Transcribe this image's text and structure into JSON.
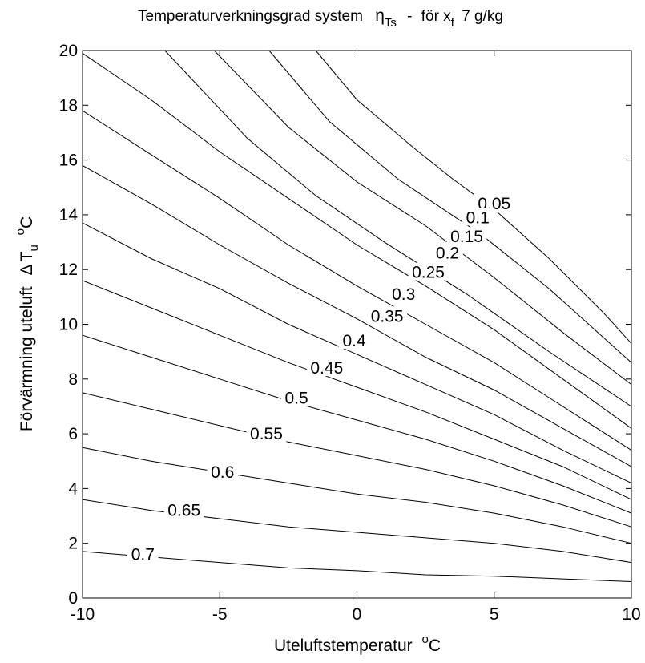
{
  "chart_data": {
    "type": "contour",
    "title": {
      "main": "Temperaturverkningsgrad system",
      "symbol": "η",
      "symbol_sub": "Ts",
      "dash": "-",
      "for_label": "för x",
      "for_sub": "f",
      "value": "7 g/kg"
    },
    "xlabel": {
      "text": "Uteluftstemperatur",
      "sup": "o",
      "unit": "C"
    },
    "ylabel": {
      "text": "Förvärmning uteluft",
      "delta": "Δ",
      "var": "T",
      "var_sub": "u",
      "sup": "o",
      "unit": "C"
    },
    "xlim": [
      -10,
      10
    ],
    "ylim": [
      0,
      20
    ],
    "xticks": [
      -10,
      -5,
      0,
      5,
      10
    ],
    "yticks": [
      0,
      2,
      4,
      6,
      8,
      10,
      12,
      14,
      16,
      18,
      20
    ],
    "grid": false,
    "levels": [
      {
        "label": "0.05",
        "pts": [
          [
            -1.5,
            20
          ],
          [
            0,
            18.2
          ],
          [
            2,
            16.5
          ],
          [
            3.5,
            15.3
          ],
          [
            5,
            14.2
          ],
          [
            7,
            12.4
          ],
          [
            9,
            10.4
          ],
          [
            10,
            9.3
          ]
        ],
        "lx": 5.0,
        "ly": 14.4
      },
      {
        "label": "0.1",
        "pts": [
          [
            -3.2,
            20
          ],
          [
            -1,
            17.4
          ],
          [
            1.5,
            15.3
          ],
          [
            4.5,
            13.3
          ],
          [
            7,
            11.3
          ],
          [
            9,
            9.5
          ],
          [
            10,
            8.6
          ]
        ],
        "lx": 4.4,
        "ly": 13.9
      },
      {
        "label": "0.15",
        "pts": [
          [
            -5.2,
            20
          ],
          [
            -2.5,
            17.2
          ],
          [
            0,
            15.2
          ],
          [
            2.5,
            13.6
          ],
          [
            5,
            11.7
          ],
          [
            7.5,
            9.7
          ],
          [
            10,
            7.8
          ]
        ],
        "lx": 4.0,
        "ly": 13.2
      },
      {
        "label": "0.2",
        "pts": [
          [
            -7,
            20
          ],
          [
            -4,
            16.8
          ],
          [
            -1.5,
            14.7
          ],
          [
            1,
            13.0
          ],
          [
            4,
            11.1
          ],
          [
            7,
            9.0
          ],
          [
            10,
            7.0
          ]
        ],
        "lx": 3.3,
        "ly": 12.6
      },
      {
        "label": "0.25",
        "pts": [
          [
            -10,
            19.9
          ],
          [
            -7.5,
            18.2
          ],
          [
            -5,
            16.3
          ],
          [
            -2.5,
            14.6
          ],
          [
            0,
            12.9
          ],
          [
            2.5,
            11.4
          ],
          [
            5,
            9.8
          ],
          [
            7.5,
            8.0
          ],
          [
            10,
            6.2
          ]
        ],
        "lx": 2.6,
        "ly": 11.9
      },
      {
        "label": "0.3",
        "pts": [
          [
            -10,
            17.8
          ],
          [
            -7.5,
            16.2
          ],
          [
            -5,
            14.6
          ],
          [
            -2.5,
            12.9
          ],
          [
            0,
            11.4
          ],
          [
            2.5,
            10.0
          ],
          [
            5,
            8.6
          ],
          [
            7.5,
            7.0
          ],
          [
            10,
            5.4
          ]
        ],
        "lx": 1.7,
        "ly": 11.1
      },
      {
        "label": "0.35",
        "pts": [
          [
            -10,
            15.8
          ],
          [
            -7.5,
            14.4
          ],
          [
            -5,
            12.9
          ],
          [
            -2.5,
            11.5
          ],
          [
            0,
            10.2
          ],
          [
            2.5,
            8.8
          ],
          [
            5,
            7.6
          ],
          [
            7.5,
            6.2
          ],
          [
            10,
            4.8
          ]
        ],
        "lx": 1.1,
        "ly": 10.3
      },
      {
        "label": "0.4",
        "pts": [
          [
            -10,
            13.7
          ],
          [
            -7.5,
            12.4
          ],
          [
            -5,
            11.3
          ],
          [
            -2.5,
            10.0
          ],
          [
            0,
            8.9
          ],
          [
            2.5,
            7.8
          ],
          [
            5,
            6.7
          ],
          [
            7.5,
            5.4
          ],
          [
            10,
            4.2
          ]
        ],
        "lx": -0.1,
        "ly": 9.4
      },
      {
        "label": "0.45",
        "pts": [
          [
            -10,
            11.6
          ],
          [
            -7.5,
            10.6
          ],
          [
            -5,
            9.6
          ],
          [
            -2.5,
            8.6
          ],
          [
            0,
            7.7
          ],
          [
            2.5,
            6.8
          ],
          [
            5,
            5.8
          ],
          [
            7.5,
            4.8
          ],
          [
            10,
            3.6
          ]
        ],
        "lx": -1.1,
        "ly": 8.4
      },
      {
        "label": "0.5",
        "pts": [
          [
            -10,
            9.6
          ],
          [
            -7.5,
            8.8
          ],
          [
            -5,
            8.0
          ],
          [
            -2.5,
            7.2
          ],
          [
            0,
            6.5
          ],
          [
            2.5,
            5.8
          ],
          [
            5,
            5.0
          ],
          [
            7.5,
            4.1
          ],
          [
            10,
            3.1
          ]
        ],
        "lx": -2.2,
        "ly": 7.3
      },
      {
        "label": "0.55",
        "pts": [
          [
            -10,
            7.5
          ],
          [
            -7.5,
            6.9
          ],
          [
            -5,
            6.3
          ],
          [
            -2.5,
            5.7
          ],
          [
            0,
            5.2
          ],
          [
            2.5,
            4.7
          ],
          [
            5,
            4.1
          ],
          [
            7.5,
            3.4
          ],
          [
            10,
            2.6
          ]
        ],
        "lx": -3.3,
        "ly": 6.0
      },
      {
        "label": "0.6",
        "pts": [
          [
            -10,
            5.5
          ],
          [
            -7.5,
            5.0
          ],
          [
            -5,
            4.6
          ],
          [
            -2.5,
            4.2
          ],
          [
            0,
            3.8
          ],
          [
            2.5,
            3.5
          ],
          [
            5,
            3.1
          ],
          [
            7.5,
            2.6
          ],
          [
            10,
            2.0
          ]
        ],
        "lx": -4.9,
        "ly": 4.6
      },
      {
        "label": "0.65",
        "pts": [
          [
            -10,
            3.6
          ],
          [
            -7.5,
            3.2
          ],
          [
            -5,
            2.9
          ],
          [
            -2.5,
            2.6
          ],
          [
            0,
            2.4
          ],
          [
            2.5,
            2.2
          ],
          [
            5,
            2.0
          ],
          [
            7.5,
            1.7
          ],
          [
            10,
            1.3
          ]
        ],
        "lx": -6.3,
        "ly": 3.2
      },
      {
        "label": "0.7",
        "pts": [
          [
            -10,
            1.7
          ],
          [
            -7.5,
            1.5
          ],
          [
            -5,
            1.3
          ],
          [
            -2.5,
            1.1
          ],
          [
            0,
            1.0
          ],
          [
            2.5,
            0.85
          ],
          [
            5,
            0.8
          ],
          [
            7.5,
            0.7
          ],
          [
            10,
            0.6
          ]
        ],
        "lx": -7.8,
        "ly": 1.6
      }
    ]
  }
}
